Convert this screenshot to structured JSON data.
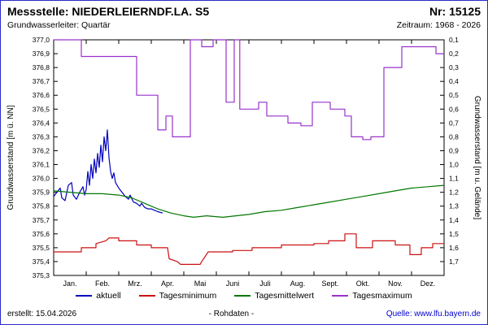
{
  "header": {
    "title": "Messstelle: NIEDERLEIERNDF.LA. S5",
    "number": "Nr: 15125",
    "aquifer": "Grundwasserleiter: Quartär",
    "period": "Zeitraum: 1968 - 2026"
  },
  "footer": {
    "created": "erstellt: 15.04.2026",
    "center": "- Rohdaten -",
    "source": "Quelle: www.lfu.bayern.de"
  },
  "chart_data": {
    "type": "line",
    "title": "",
    "ylabel_left": "Grundwasserstand [m ü. NN]",
    "ylabel_right": "Grundwasserstand [m u. Gelände]",
    "ylim": [
      375.3,
      377.0
    ],
    "xlim_months": [
      0,
      12
    ],
    "grid": false,
    "legend_position": "bottom",
    "left_ticks": [
      "377,0",
      "376,9",
      "376,8",
      "376,7",
      "376,6",
      "376,5",
      "376,4",
      "376,3",
      "376,2",
      "376,1",
      "376,0",
      "375,9",
      "375,8",
      "375,7",
      "375,6",
      "375,5",
      "375,4",
      "375,3"
    ],
    "right_ticks": [
      "0,1",
      "0,2",
      "0,3",
      "0,4",
      "0,5",
      "0,6",
      "0,7",
      "0,8",
      "0,9",
      "1,0",
      "1,1",
      "1,2",
      "1,3",
      "1,4",
      "1,5",
      "1,6",
      "1,7"
    ],
    "month_labels": [
      "Jan.",
      "Feb.",
      "Mrz.",
      "Apr.",
      "Mai",
      "Juni",
      "Juli",
      "Aug.",
      "Sept.",
      "Okt.",
      "Nov.",
      "Dez."
    ],
    "series": [
      {
        "name": "aktuell",
        "color": "#0000bf",
        "points": [
          [
            0.0,
            375.87
          ],
          [
            0.1,
            375.9
          ],
          [
            0.2,
            375.93
          ],
          [
            0.25,
            375.86
          ],
          [
            0.35,
            375.84
          ],
          [
            0.45,
            375.95
          ],
          [
            0.55,
            375.97
          ],
          [
            0.6,
            375.88
          ],
          [
            0.7,
            375.85
          ],
          [
            0.8,
            375.9
          ],
          [
            0.9,
            375.94
          ],
          [
            0.95,
            375.88
          ],
          [
            1.0,
            375.92
          ],
          [
            1.05,
            376.05
          ],
          [
            1.1,
            375.95
          ],
          [
            1.15,
            376.1
          ],
          [
            1.2,
            376.0
          ],
          [
            1.25,
            376.14
          ],
          [
            1.3,
            376.04
          ],
          [
            1.35,
            376.18
          ],
          [
            1.4,
            376.08
          ],
          [
            1.45,
            376.24
          ],
          [
            1.5,
            376.12
          ],
          [
            1.55,
            376.3
          ],
          [
            1.6,
            376.2
          ],
          [
            1.65,
            376.35
          ],
          [
            1.7,
            376.15
          ],
          [
            1.75,
            376.05
          ],
          [
            1.8,
            376.0
          ],
          [
            1.85,
            376.04
          ],
          [
            1.9,
            375.97
          ],
          [
            2.0,
            375.93
          ],
          [
            2.1,
            375.9
          ],
          [
            2.2,
            375.87
          ],
          [
            2.3,
            375.85
          ],
          [
            2.35,
            375.88
          ],
          [
            2.45,
            375.83
          ],
          [
            2.55,
            375.82
          ],
          [
            2.65,
            375.8
          ],
          [
            2.7,
            375.82
          ],
          [
            2.8,
            375.79
          ],
          [
            2.9,
            375.78
          ],
          [
            3.0,
            375.78
          ],
          [
            3.1,
            375.77
          ],
          [
            3.2,
            375.76
          ],
          [
            3.35,
            375.75
          ]
        ]
      },
      {
        "name": "Tagesminimum",
        "color": "#cc1111",
        "points": [
          [
            0,
            375.47
          ],
          [
            0.85,
            375.47
          ],
          [
            0.85,
            375.5
          ],
          [
            1.3,
            375.5
          ],
          [
            1.3,
            375.53
          ],
          [
            1.6,
            375.55
          ],
          [
            1.7,
            375.57
          ],
          [
            2.0,
            375.57
          ],
          [
            2.0,
            375.55
          ],
          [
            2.55,
            375.55
          ],
          [
            2.55,
            375.52
          ],
          [
            3.0,
            375.52
          ],
          [
            3.0,
            375.5
          ],
          [
            3.5,
            375.5
          ],
          [
            3.55,
            375.42
          ],
          [
            3.8,
            375.4
          ],
          [
            3.9,
            375.38
          ],
          [
            4.5,
            375.38
          ],
          [
            4.55,
            375.4
          ],
          [
            4.75,
            375.47
          ],
          [
            5.5,
            375.47
          ],
          [
            5.5,
            375.48
          ],
          [
            6.1,
            375.48
          ],
          [
            6.1,
            375.5
          ],
          [
            7.0,
            375.5
          ],
          [
            7.0,
            375.52
          ],
          [
            8.0,
            375.52
          ],
          [
            8.0,
            375.53
          ],
          [
            8.45,
            375.53
          ],
          [
            8.45,
            375.55
          ],
          [
            8.95,
            375.55
          ],
          [
            8.95,
            375.6
          ],
          [
            9.3,
            375.6
          ],
          [
            9.3,
            375.5
          ],
          [
            9.8,
            375.5
          ],
          [
            9.8,
            375.55
          ],
          [
            10.5,
            375.55
          ],
          [
            10.5,
            375.52
          ],
          [
            10.95,
            375.52
          ],
          [
            10.95,
            375.45
          ],
          [
            11.3,
            375.45
          ],
          [
            11.3,
            375.5
          ],
          [
            11.65,
            375.5
          ],
          [
            11.65,
            375.53
          ],
          [
            12,
            375.53
          ]
        ]
      },
      {
        "name": "Tagesmittelwert",
        "color": "#007700",
        "points": [
          [
            0,
            375.91
          ],
          [
            0.5,
            375.9
          ],
          [
            1.0,
            375.89
          ],
          [
            1.5,
            375.89
          ],
          [
            2.0,
            375.88
          ],
          [
            2.4,
            375.86
          ],
          [
            2.8,
            375.82
          ],
          [
            3.2,
            375.78
          ],
          [
            3.6,
            375.75
          ],
          [
            4.0,
            375.73
          ],
          [
            4.3,
            375.72
          ],
          [
            4.7,
            375.73
          ],
          [
            5.2,
            375.72
          ],
          [
            5.6,
            375.73
          ],
          [
            6.0,
            375.74
          ],
          [
            6.5,
            375.76
          ],
          [
            7.0,
            375.77
          ],
          [
            7.5,
            375.79
          ],
          [
            8.0,
            375.81
          ],
          [
            8.5,
            375.83
          ],
          [
            9.0,
            375.85
          ],
          [
            9.5,
            375.87
          ],
          [
            10.0,
            375.89
          ],
          [
            10.5,
            375.91
          ],
          [
            11.0,
            375.93
          ],
          [
            11.5,
            375.94
          ],
          [
            12,
            375.95
          ]
        ]
      },
      {
        "name": "Tagesmaximum",
        "color": "#9932cc",
        "points": [
          [
            0,
            377.0
          ],
          [
            0.85,
            377.0
          ],
          [
            0.85,
            376.88
          ],
          [
            2.55,
            376.88
          ],
          [
            2.55,
            376.6
          ],
          [
            3.2,
            376.6
          ],
          [
            3.2,
            376.35
          ],
          [
            3.45,
            376.35
          ],
          [
            3.45,
            376.45
          ],
          [
            3.65,
            376.45
          ],
          [
            3.65,
            376.3
          ],
          [
            4.2,
            376.3
          ],
          [
            4.2,
            377.0
          ],
          [
            4.55,
            377.0
          ],
          [
            4.55,
            376.95
          ],
          [
            4.9,
            376.95
          ],
          [
            4.9,
            377.0
          ],
          [
            5.3,
            377.0
          ],
          [
            5.3,
            376.55
          ],
          [
            5.55,
            376.55
          ],
          [
            5.55,
            377.0
          ],
          [
            5.72,
            377.0
          ],
          [
            5.72,
            376.5
          ],
          [
            6.3,
            376.5
          ],
          [
            6.3,
            376.55
          ],
          [
            6.55,
            376.55
          ],
          [
            6.55,
            376.45
          ],
          [
            7.2,
            376.45
          ],
          [
            7.2,
            376.4
          ],
          [
            7.6,
            376.4
          ],
          [
            7.6,
            376.38
          ],
          [
            7.95,
            376.38
          ],
          [
            7.95,
            376.55
          ],
          [
            8.5,
            376.55
          ],
          [
            8.5,
            376.5
          ],
          [
            8.95,
            376.5
          ],
          [
            8.95,
            376.45
          ],
          [
            9.15,
            376.45
          ],
          [
            9.15,
            376.3
          ],
          [
            9.5,
            376.3
          ],
          [
            9.5,
            376.28
          ],
          [
            9.75,
            376.28
          ],
          [
            9.75,
            376.3
          ],
          [
            10.15,
            376.3
          ],
          [
            10.15,
            376.8
          ],
          [
            10.7,
            376.8
          ],
          [
            10.7,
            376.95
          ],
          [
            11.75,
            376.95
          ],
          [
            11.75,
            376.9
          ],
          [
            12,
            376.9
          ]
        ]
      }
    ]
  }
}
